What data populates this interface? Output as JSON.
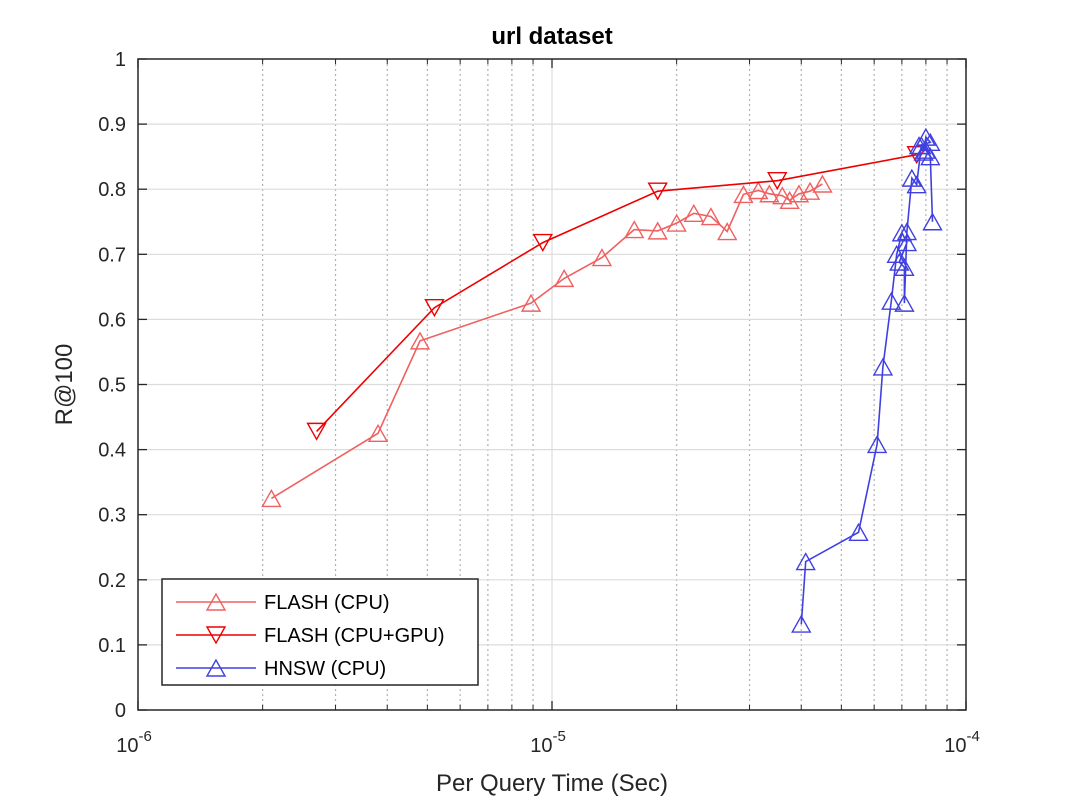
{
  "chart_data": {
    "type": "line",
    "title": "url dataset",
    "xlabel": "Per Query Time (Sec)",
    "ylabel": "R@100",
    "xscale": "log",
    "xlim": [
      1e-06,
      0.0001
    ],
    "ylim": [
      0,
      1
    ],
    "xticks": [
      {
        "value": 1e-06,
        "base": "10",
        "exp": "-6"
      },
      {
        "value": 1e-05,
        "base": "10",
        "exp": "-5"
      },
      {
        "value": 0.0001,
        "base": "10",
        "exp": "-4"
      }
    ],
    "yticks": [
      {
        "value": 0,
        "label": "0"
      },
      {
        "value": 0.1,
        "label": "0.1"
      },
      {
        "value": 0.2,
        "label": "0.2"
      },
      {
        "value": 0.3,
        "label": "0.3"
      },
      {
        "value": 0.4,
        "label": "0.4"
      },
      {
        "value": 0.5,
        "label": "0.5"
      },
      {
        "value": 0.6,
        "label": "0.6"
      },
      {
        "value": 0.7,
        "label": "0.7"
      },
      {
        "value": 0.8,
        "label": "0.8"
      },
      {
        "value": 0.9,
        "label": "0.9"
      },
      {
        "value": 1,
        "label": "1"
      }
    ],
    "grid": true,
    "minor_grid": true,
    "legend_position": "bottom-left",
    "series": [
      {
        "name": "FLASH (CPU)",
        "color": "#f06060",
        "marker": "triangle-up",
        "x": [
          2.1e-06,
          3.8e-06,
          4.8e-06,
          8.9e-06,
          1.07e-05,
          1.32e-05,
          1.58e-05,
          1.8e-05,
          2e-05,
          2.2e-05,
          2.42e-05,
          2.65e-05,
          2.9e-05,
          3.15e-05,
          3.35e-05,
          3.6e-05,
          3.75e-05,
          3.95e-05,
          4.2e-05,
          4.5e-05
        ],
        "y": [
          0.325,
          0.425,
          0.567,
          0.625,
          0.663,
          0.695,
          0.738,
          0.736,
          0.748,
          0.763,
          0.758,
          0.735,
          0.792,
          0.798,
          0.793,
          0.79,
          0.783,
          0.793,
          0.797,
          0.808
        ]
      },
      {
        "name": "FLASH (CPU+GPU)",
        "color": "#ee0000",
        "marker": "triangle-down",
        "x": [
          2.7e-06,
          5.2e-06,
          9.5e-06,
          1.8e-05,
          3.5e-05,
          7.6e-05
        ],
        "y": [
          0.428,
          0.618,
          0.718,
          0.797,
          0.813,
          0.853
        ]
      },
      {
        "name": "HNSW (CPU)",
        "color": "#4040e0",
        "marker": "triangle-up",
        "x": [
          4e-05,
          4.1e-05,
          5.5e-05,
          6.1e-05,
          6.3e-05,
          6.6e-05,
          6.8e-05,
          7e-05,
          7.2e-05,
          6.9e-05,
          7.1e-05,
          7.1e-05,
          7.2e-05,
          7.4e-05,
          7.6e-05,
          7.8e-05,
          7.9e-05,
          8e-05,
          8.2e-05,
          7.7e-05,
          8e-05,
          8.2e-05,
          8.3e-05
        ],
        "y": [
          0.132,
          0.228,
          0.273,
          0.408,
          0.527,
          0.628,
          0.7,
          0.733,
          0.718,
          0.688,
          0.68,
          0.625,
          0.735,
          0.817,
          0.807,
          0.867,
          0.857,
          0.88,
          0.872,
          0.867,
          0.86,
          0.85,
          0.75
        ]
      }
    ]
  }
}
